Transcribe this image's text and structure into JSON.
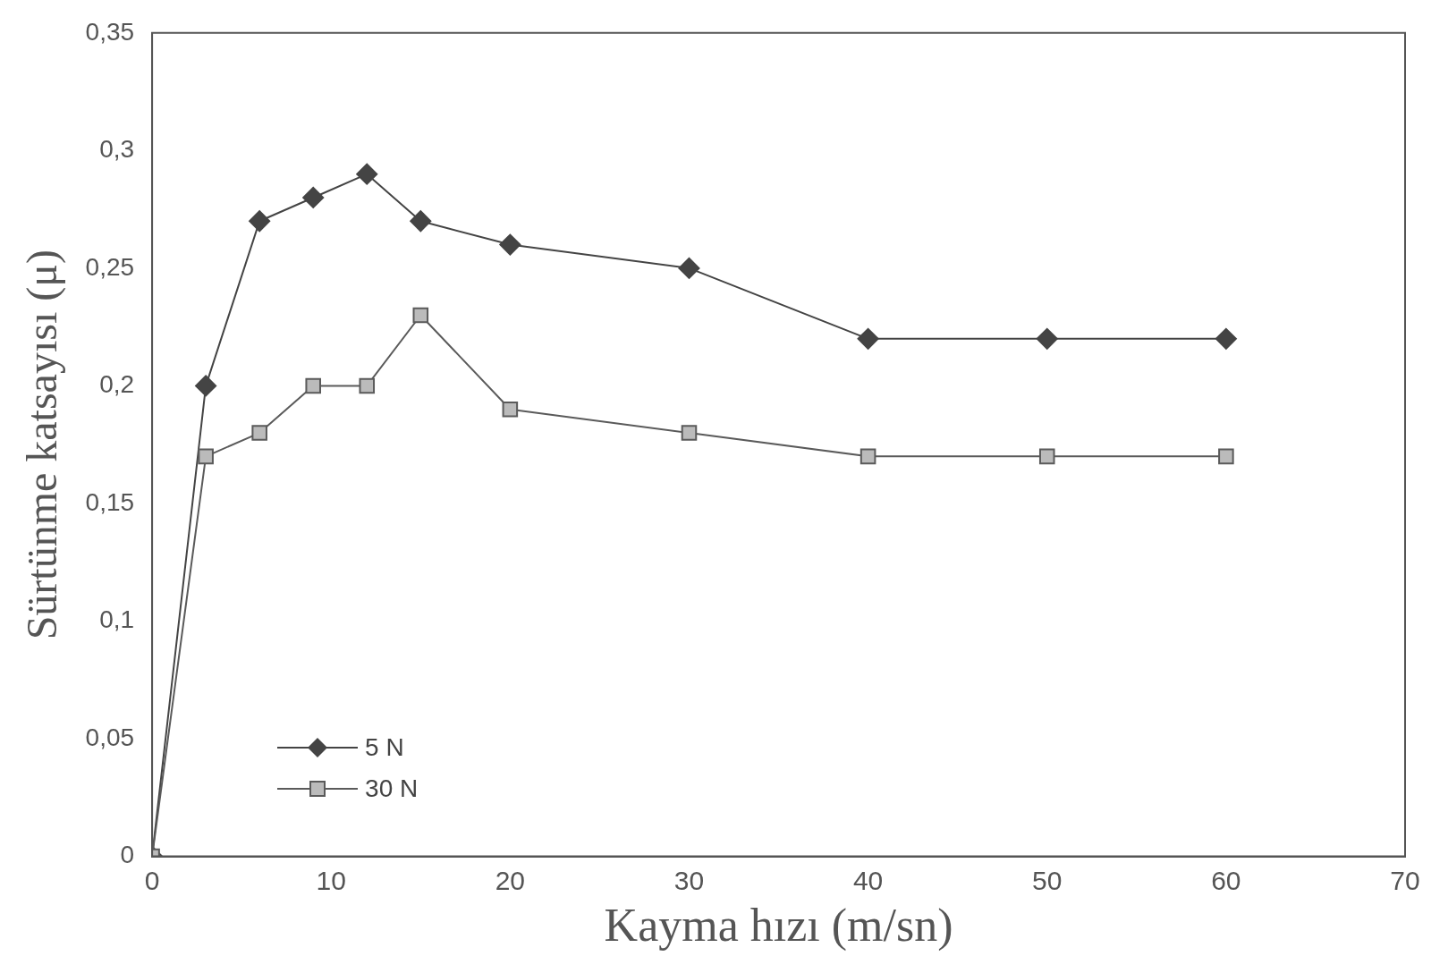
{
  "chart_data": {
    "type": "line",
    "xlabel": "Kayma hızı (m/sn)",
    "ylabel": "Sürtünme katsayısı (μ)",
    "x": [
      0,
      3,
      6,
      9,
      12,
      15,
      20,
      30,
      40,
      50,
      60
    ],
    "series": [
      {
        "name": "5 N",
        "color": "#444444",
        "marker": "diamond",
        "values": [
          0,
          0.2,
          0.27,
          0.28,
          0.29,
          0.27,
          0.26,
          0.25,
          0.22,
          0.22,
          0.22
        ]
      },
      {
        "name": "30 N",
        "color": "#5a5a5a",
        "marker": "square",
        "values": [
          0,
          0.17,
          0.18,
          0.2,
          0.2,
          0.23,
          0.19,
          0.18,
          0.17,
          0.17,
          0.17
        ]
      }
    ],
    "xlim": [
      0,
      70
    ],
    "xticks": [
      0,
      10,
      20,
      30,
      40,
      50,
      60,
      70
    ],
    "ylim": [
      0,
      0.35
    ],
    "yticks": [
      {
        "value": 0,
        "label": "0"
      },
      {
        "value": 0.05,
        "label": "0,05"
      },
      {
        "value": 0.1,
        "label": "0,1"
      },
      {
        "value": 0.15,
        "label": "0,15"
      },
      {
        "value": 0.2,
        "label": "0,2"
      },
      {
        "value": 0.25,
        "label": "0,25"
      },
      {
        "value": 0.3,
        "label": "0,3"
      },
      {
        "value": 0.35,
        "label": "0,35"
      }
    ],
    "grid": false,
    "legend": "bottom left"
  }
}
